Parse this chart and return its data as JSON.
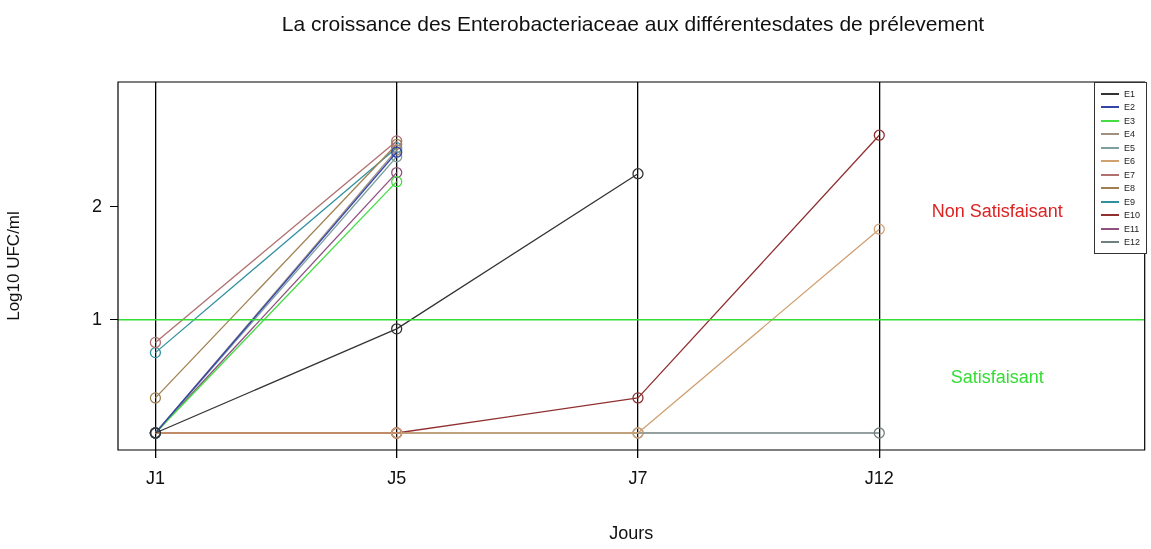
{
  "chart_data": {
    "type": "line",
    "title": "La croissance des Enterobacteriaceae aux différentesdates de prélevement",
    "xlabel": "Jours",
    "ylabel": "Log10 UFC/ml",
    "categories": [
      "J1",
      "J5",
      "J7",
      "J12"
    ],
    "series": [
      {
        "name": "E1",
        "color": "#333333",
        "values": [
          0,
          0.92,
          2.29,
          null
        ]
      },
      {
        "name": "E2",
        "color": "#3344aa",
        "values": [
          0,
          2.48,
          null,
          null
        ]
      },
      {
        "name": "E3",
        "color": "#44dd44",
        "values": [
          0,
          2.22,
          null,
          null
        ]
      },
      {
        "name": "E4",
        "color": "#a09080",
        "values": [
          0,
          2.5,
          null,
          null
        ]
      },
      {
        "name": "E5",
        "color": "#80a0a0",
        "values": [
          0,
          2.44,
          null,
          null
        ]
      },
      {
        "name": "E6",
        "color": "#d0a070",
        "values": [
          0,
          0,
          0,
          1.8
        ]
      },
      {
        "name": "E7",
        "color": "#b07070",
        "values": [
          0.8,
          2.58,
          null,
          null
        ]
      },
      {
        "name": "E8",
        "color": "#a08050",
        "values": [
          0.31,
          2.55,
          null,
          null
        ]
      },
      {
        "name": "E9",
        "color": "#3090a0",
        "values": [
          0.71,
          2.52,
          null,
          null
        ]
      },
      {
        "name": "E10",
        "color": "#903030",
        "values": [
          0,
          0,
          0.31,
          2.63
        ]
      },
      {
        "name": "E11",
        "color": "#905080",
        "values": [
          0,
          2.3,
          null,
          null
        ]
      },
      {
        "name": "E12",
        "color": "#708080",
        "values": [
          0,
          0,
          0,
          0
        ]
      }
    ],
    "ylim": [
      -0.15,
      3.1
    ],
    "yticks": [
      1,
      2
    ],
    "grid": "x",
    "legend": "top right",
    "marker": "circle",
    "line_style": "solid",
    "ref_lines": [
      {
        "axis": "y",
        "value": 1,
        "color": "#33dd33"
      }
    ],
    "annotations": [
      "Non Satisfaisant",
      "Satisfaisant"
    ]
  }
}
